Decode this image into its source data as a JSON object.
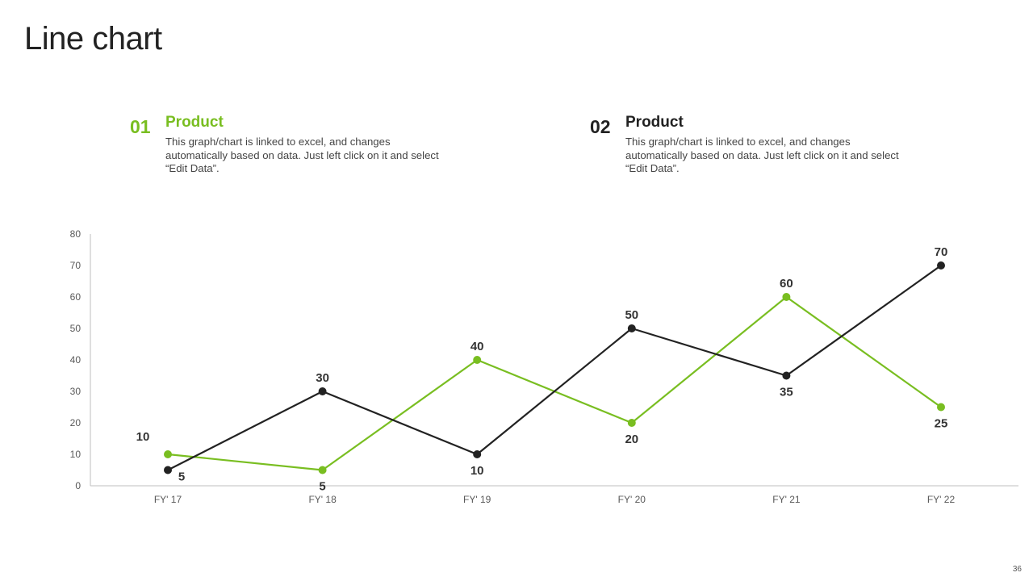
{
  "slide": {
    "title": "Line chart",
    "page_number": "36"
  },
  "legend": [
    {
      "number": "01",
      "heading": "Product",
      "description": "This graph/chart is linked to excel, and changes automatically based on data. Just left click on it and select “Edit Data”.",
      "color": "#79BE21"
    },
    {
      "number": "02",
      "heading": "Product",
      "description": "This graph/chart is linked to excel, and changes automatically based on data. Just left click on it and select “Edit Data”.",
      "color": "#222222"
    }
  ],
  "colors": {
    "series_green": "#79BE21",
    "series_black": "#222222",
    "axis": "#bfbfbf",
    "tick_text": "#595959",
    "label_text": "#333333"
  },
  "chart_data": {
    "type": "line",
    "categories": [
      "FY' 17",
      "FY' 18",
      "FY' 19",
      "FY' 20",
      "FY' 21",
      "FY' 22"
    ],
    "series": [
      {
        "values": [
          10,
          5,
          40,
          20,
          60,
          25
        ],
        "color": "#79BE21"
      },
      {
        "values": [
          5,
          30,
          10,
          50,
          35,
          70
        ],
        "color": "#222222"
      }
    ],
    "ylim": [
      0,
      80
    ],
    "yticks": [
      "0",
      "10",
      "20",
      "30",
      "40",
      "50",
      "60",
      "70",
      "80"
    ],
    "grid": false,
    "data_labels": true
  }
}
